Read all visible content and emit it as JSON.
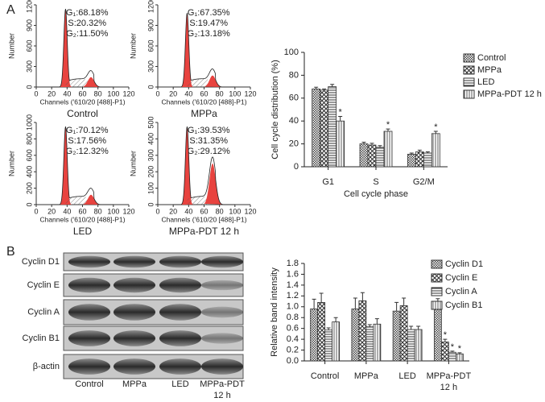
{
  "panel_labels": [
    "A",
    "B"
  ],
  "flow": [
    {
      "name": "Control",
      "stats": [
        "G₁:68.18%",
        "S:20.32%",
        "G₂:11.50%"
      ],
      "xlabel": "Channels ('610/20 [488]-P1)",
      "ylabel": "Number",
      "xlim": [
        0,
        120
      ],
      "xticks": [
        0,
        20,
        40,
        60,
        80,
        100,
        120
      ],
      "ylim": [
        0,
        1200
      ],
      "yticks": [
        0,
        300,
        600,
        900,
        1200
      ]
    },
    {
      "name": "MPPa",
      "stats": [
        "G₁:67.35%",
        "S:19.47%",
        "G₂:13.18%"
      ],
      "xlabel": "Channels ('610/20 [488]-P1)",
      "ylabel": "Number",
      "xlim": [
        0,
        120
      ],
      "xticks": [
        0,
        20,
        40,
        60,
        80,
        100,
        120
      ],
      "ylim": [
        0,
        1200
      ],
      "yticks": [
        0,
        300,
        600,
        900,
        1200
      ]
    },
    {
      "name": "LED",
      "stats": [
        "G₁:70.12%",
        "S:17.56%",
        "G₂:12.32%"
      ],
      "xlabel": "Channels ('610/20 [488]-P1)",
      "ylabel": "Number",
      "xlim": [
        0,
        120
      ],
      "xticks": [
        0,
        20,
        40,
        60,
        80,
        100,
        120
      ],
      "ylim": [
        0,
        1000
      ],
      "yticks": [
        0,
        200,
        400,
        600,
        800,
        1000
      ]
    },
    {
      "name": "MPPa-PDT 12 h",
      "stats": [
        "G₁:39.53%",
        "S:31.35%",
        "G₂:29.12%"
      ],
      "xlabel": "Channels ('610/20 [488]-P1)",
      "ylabel": "Number",
      "xlim": [
        0,
        120
      ],
      "xticks": [
        0,
        20,
        40,
        60,
        80,
        100,
        120
      ],
      "ylim": [
        0,
        500
      ],
      "yticks": [
        0,
        100,
        200,
        300,
        400,
        500
      ]
    }
  ],
  "blot": {
    "rows": [
      "Cyclin D1",
      "Cyclin E",
      "Cyclin A",
      "Cyclin B1",
      "β-actin"
    ],
    "columns": [
      "Control",
      "MPPa",
      "LED",
      "MPPa-PDT 12 h"
    ]
  },
  "chart_data": [
    {
      "type": "bar",
      "ylabel": "Cell cycle distribution (%)",
      "xlabel": "Cell cycle phase",
      "categories": [
        "G1",
        "S",
        "G2/M"
      ],
      "ylim": [
        0,
        100
      ],
      "yticks": [
        0,
        20,
        40,
        60,
        80,
        100
      ],
      "legend": "right",
      "series": [
        {
          "name": "Control",
          "color": "#333333",
          "pattern": "checker",
          "values": [
            68,
            20,
            11
          ],
          "errors": [
            1.5,
            1.5,
            1
          ]
        },
        {
          "name": "MPPa",
          "color": "#333333",
          "pattern": "cross",
          "values": [
            67,
            19,
            13
          ],
          "errors": [
            1,
            1.5,
            1.5
          ]
        },
        {
          "name": "LED",
          "color": "#333333",
          "pattern": "hlines",
          "values": [
            70,
            17,
            12
          ],
          "errors": [
            2,
            1.5,
            1
          ]
        },
        {
          "name": "MPPa-PDT 12 h",
          "color": "#333333",
          "pattern": "vlines",
          "values": [
            40,
            31,
            29
          ],
          "errors": [
            4,
            2,
            2
          ],
          "significance": [
            "*",
            "*",
            "*"
          ]
        }
      ]
    },
    {
      "type": "bar",
      "ylabel": "Relative band intensity",
      "categories": [
        "Control",
        "MPPa",
        "LED",
        "MPPa-PDT 12 h"
      ],
      "ylim": [
        0,
        1.8
      ],
      "yticks": [
        {
          "value": 0,
          "label": "0.0"
        },
        0.2,
        0.4,
        0.6,
        0.8,
        {
          "value": 1,
          "label": "1.0"
        },
        1.2,
        1.4,
        1.6,
        1.8
      ],
      "legend": "right",
      "series": [
        {
          "name": "Cyclin D1",
          "color": "#333333",
          "pattern": "checker",
          "values": [
            0.96,
            0.96,
            0.92,
            0.95
          ],
          "errors": [
            0.18,
            0.2,
            0.16,
            0.2
          ]
        },
        {
          "name": "Cyclin E",
          "color": "#333333",
          "pattern": "cross",
          "values": [
            1.08,
            1.11,
            1.02,
            0.35
          ],
          "errors": [
            0.17,
            0.15,
            0.14,
            0.05
          ],
          "significance": [
            null,
            null,
            null,
            "*"
          ]
        },
        {
          "name": "Cyclin A",
          "color": "#333333",
          "pattern": "hlines",
          "values": [
            0.57,
            0.63,
            0.58,
            0.16
          ],
          "errors": [
            0.04,
            0.04,
            0.06,
            0.02
          ],
          "significance": [
            null,
            null,
            null,
            "*"
          ]
        },
        {
          "name": "Cyclin B1",
          "color": "#333333",
          "pattern": "vlines",
          "values": [
            0.72,
            0.68,
            0.58,
            0.13
          ],
          "errors": [
            0.08,
            0.1,
            0.06,
            0.02
          ],
          "significance": [
            null,
            null,
            null,
            "*"
          ]
        }
      ]
    }
  ]
}
